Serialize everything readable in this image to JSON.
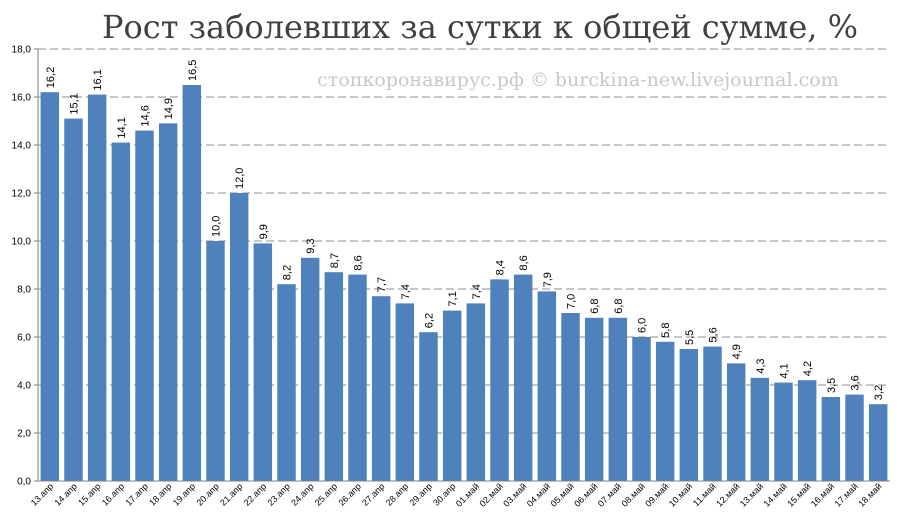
{
  "chart_data": {
    "type": "bar",
    "title": "Рост заболевших за сутки к общей сумме, %",
    "watermark": "стопкоронавирус.рф © burckina-new.livejournal.com",
    "categories": [
      "13.апр",
      "14.апр",
      "15.апр",
      "16.апр",
      "17.апр",
      "18.апр",
      "19.апр",
      "20.апр",
      "21.апр",
      "22.апр",
      "23.апр",
      "24.апр",
      "25.апр",
      "26.апр",
      "27.апр",
      "28.апр",
      "29.апр",
      "30.апр",
      "01.май",
      "02.май",
      "03.май",
      "04.май",
      "05.май",
      "06.май",
      "07.май",
      "08.май",
      "09.май",
      "10.май",
      "11.май",
      "12.май",
      "13.май",
      "14.май",
      "15.май",
      "16.май",
      "17.май",
      "18.май"
    ],
    "values": [
      16.2,
      15.1,
      16.1,
      14.1,
      14.6,
      14.9,
      16.5,
      10.0,
      12.0,
      9.9,
      8.2,
      9.3,
      8.7,
      8.6,
      7.7,
      7.4,
      6.2,
      7.1,
      7.4,
      8.4,
      8.6,
      7.9,
      7.0,
      6.8,
      6.8,
      6.0,
      5.8,
      5.5,
      5.6,
      4.9,
      4.3,
      4.1,
      4.2,
      3.5,
      3.6,
      3.2
    ],
    "value_labels": [
      "16,2",
      "15,1",
      "16,1",
      "14,1",
      "14,6",
      "14,9",
      "16,5",
      "10,0",
      "12,0",
      "9,9",
      "8,2",
      "9,3",
      "8,7",
      "8,6",
      "7,7",
      "7,4",
      "6,2",
      "7,1",
      "7,4",
      "8,4",
      "8,6",
      "7,9",
      "7,0",
      "6,8",
      "6,8",
      "6,0",
      "5,8",
      "5,5",
      "5,6",
      "4,9",
      "4,3",
      "4,1",
      "4,2",
      "3,5",
      "3,6",
      "3,2"
    ],
    "ylim": [
      0,
      18
    ],
    "yticks": [
      0,
      2,
      4,
      6,
      8,
      10,
      12,
      14,
      16,
      18
    ],
    "ytick_labels": [
      "0,0",
      "2,0",
      "4,0",
      "6,0",
      "8,0",
      "10,0",
      "12,0",
      "14,0",
      "16,0",
      "18,0"
    ],
    "grid": true,
    "legend": "none",
    "bar_color": "#4f81bd",
    "xlabel": "",
    "ylabel": ""
  }
}
